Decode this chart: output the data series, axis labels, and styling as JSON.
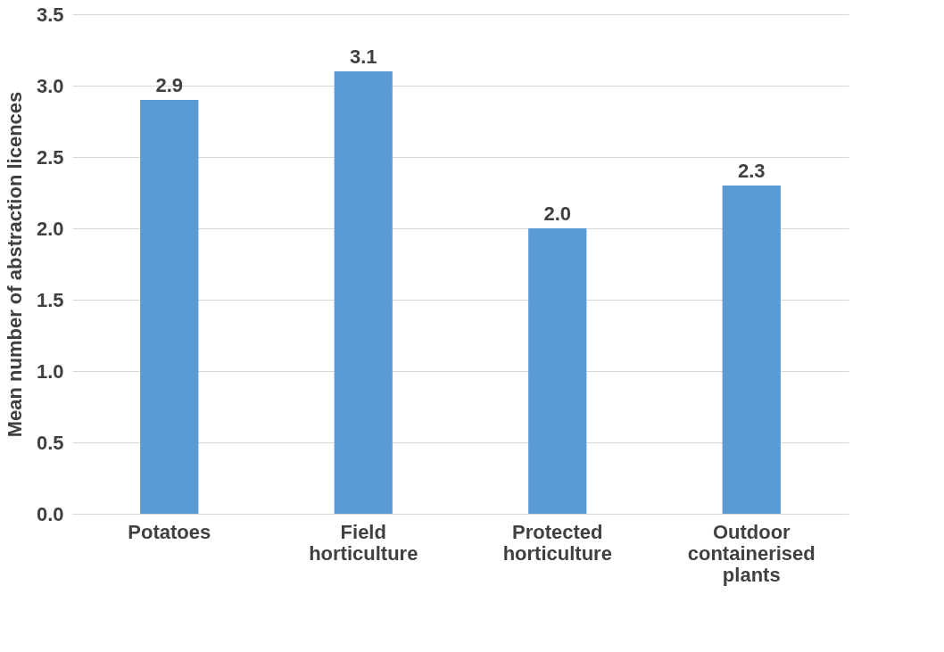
{
  "chart_data": {
    "type": "bar",
    "ylabel": "Mean number of abstraction licences",
    "categories": [
      "Potatoes",
      "Field horticulture",
      "Protected horticulture",
      "Outdoor containerised plants"
    ],
    "values": [
      2.9,
      3.1,
      2.0,
      2.3
    ],
    "color": "#5b9bd5",
    "value_labels": [
      "2.9",
      "3.1",
      "2.0",
      "2.3"
    ],
    "ylim": [
      0,
      3.5
    ],
    "yticks": [
      {
        "value": 0,
        "label": "0.0"
      },
      0.5,
      {
        "value": 1,
        "label": "1.0"
      },
      1.5,
      {
        "value": 2,
        "label": "2.0"
      },
      2.5,
      {
        "value": 3,
        "label": "3.0"
      },
      3.5
    ],
    "grid": "y"
  }
}
